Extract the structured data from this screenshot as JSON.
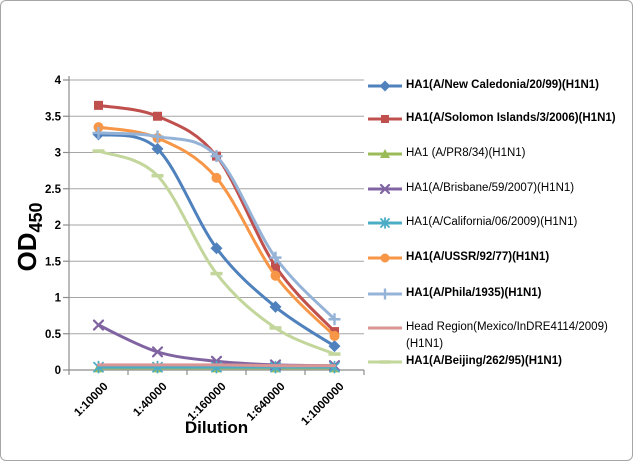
{
  "chart_data": {
    "type": "line",
    "title": "",
    "xlabel": "Dilution",
    "ylabel": "OD",
    "ylabel_subscript": "450",
    "categories": [
      "1:10000",
      "1:40000",
      "1:160000",
      "1:640000",
      "1:1000000"
    ],
    "y_ticks": [
      "0",
      "0.5",
      "1",
      "1.5",
      "2",
      "2.5",
      "3",
      "3.5",
      "4"
    ],
    "ylim": [
      0,
      4
    ],
    "grid": true,
    "smoothed_lines": true,
    "legend_position": "right",
    "series": [
      {
        "name": "HA1(A/New Caledonia/20/99)(H1N1)",
        "color": "#4F81BD",
        "marker": "diamond",
        "bold_legend": true,
        "values": [
          3.25,
          3.05,
          1.68,
          0.87,
          0.33
        ]
      },
      {
        "name": "HA1(A/Solomon Islands/3/2006)(H1N1)",
        "color": "#C0504D",
        "marker": "square",
        "bold_legend": true,
        "values": [
          3.65,
          3.5,
          2.95,
          1.43,
          0.53
        ]
      },
      {
        "name": "HA1 (A/PR8/34)(H1N1)",
        "color": "#9BBB59",
        "marker": "triangle",
        "bold_legend": false,
        "values": [
          0.03,
          0.03,
          0.03,
          0.03,
          0.03
        ]
      },
      {
        "name": "HA1(A/Brisbane/59/2007)(H1N1)",
        "color": "#8064A2",
        "marker": "x",
        "bold_legend": false,
        "values": [
          0.62,
          0.25,
          0.12,
          0.07,
          0.06
        ]
      },
      {
        "name": "HA1(A/California/06/2009)(H1N1)",
        "color": "#4BACC6",
        "marker": "asterisk",
        "bold_legend": false,
        "values": [
          0.04,
          0.04,
          0.04,
          0.04,
          0.04
        ]
      },
      {
        "name": "HA1(A/USSR/92/77)(H1N1)",
        "color": "#F79646",
        "marker": "circle",
        "bold_legend": true,
        "values": [
          3.35,
          3.2,
          2.65,
          1.3,
          0.47
        ]
      },
      {
        "name": "HA1(A/Phila/1935)(H1N1)",
        "color": "#95B3D7",
        "marker": "plus",
        "bold_legend": true,
        "values": [
          3.27,
          3.22,
          2.95,
          1.55,
          0.7
        ]
      },
      {
        "name": "Head Region(Mexico/InDRE4114/2009)(H1N1)",
        "color": "#D99694",
        "marker": "none",
        "bold_legend": false,
        "values": [
          0.07,
          0.07,
          0.07,
          0.06,
          0.06
        ]
      },
      {
        "name": "HA1(A/Beijing/262/95)(H1N1)",
        "color": "#C3D69B",
        "marker": "dash",
        "bold_legend": true,
        "values": [
          3.02,
          2.68,
          1.33,
          0.58,
          0.22
        ]
      }
    ],
    "colors": {
      "background": "#FFFFFF",
      "axis": "#8C8C8C",
      "gridline": "#A6A6A6",
      "text": "#000000",
      "frame_border": "#A6A6A6"
    }
  }
}
